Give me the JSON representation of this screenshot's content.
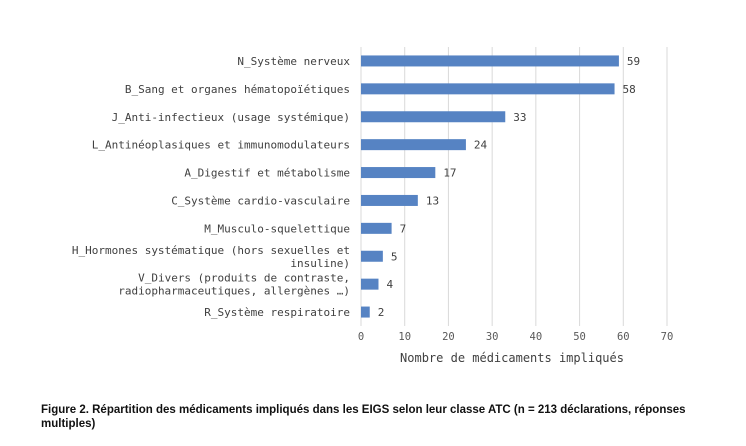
{
  "chart_data": {
    "type": "bar",
    "orientation": "horizontal",
    "categories": [
      [
        "N_Système nerveux"
      ],
      [
        "B_Sang et organes hématopoïétiques"
      ],
      [
        "J_Anti-infectieux (usage systémique)"
      ],
      [
        "L_Antinéoplasiques et immunomodulateurs"
      ],
      [
        "A_Digestif et métabolisme"
      ],
      [
        "C_Système cardio-vasculaire"
      ],
      [
        "M_Musculo-squelettique"
      ],
      [
        "H_Hormones systématique (hors sexuelles et",
        "insuline)"
      ],
      [
        "V_Divers (produits de contraste,",
        "radiopharmaceutiques, allergènes …)"
      ],
      [
        "R_Système respiratoire"
      ]
    ],
    "values": [
      59,
      58,
      33,
      24,
      17,
      13,
      7,
      5,
      4,
      2
    ],
    "xlabel": "Nombre de médicaments impliqués",
    "xlim": [
      0,
      70
    ],
    "xticks": [
      0,
      10,
      20,
      30,
      40,
      50,
      60,
      70
    ],
    "grid": true,
    "bar_color": "#5683C3",
    "grid_color": "#D9D9D9"
  },
  "caption": "Figure 2. Répartition des médicaments impliqués dans les EIGS selon leur classe ATC (n = 213 déclarations, réponses multiples)"
}
